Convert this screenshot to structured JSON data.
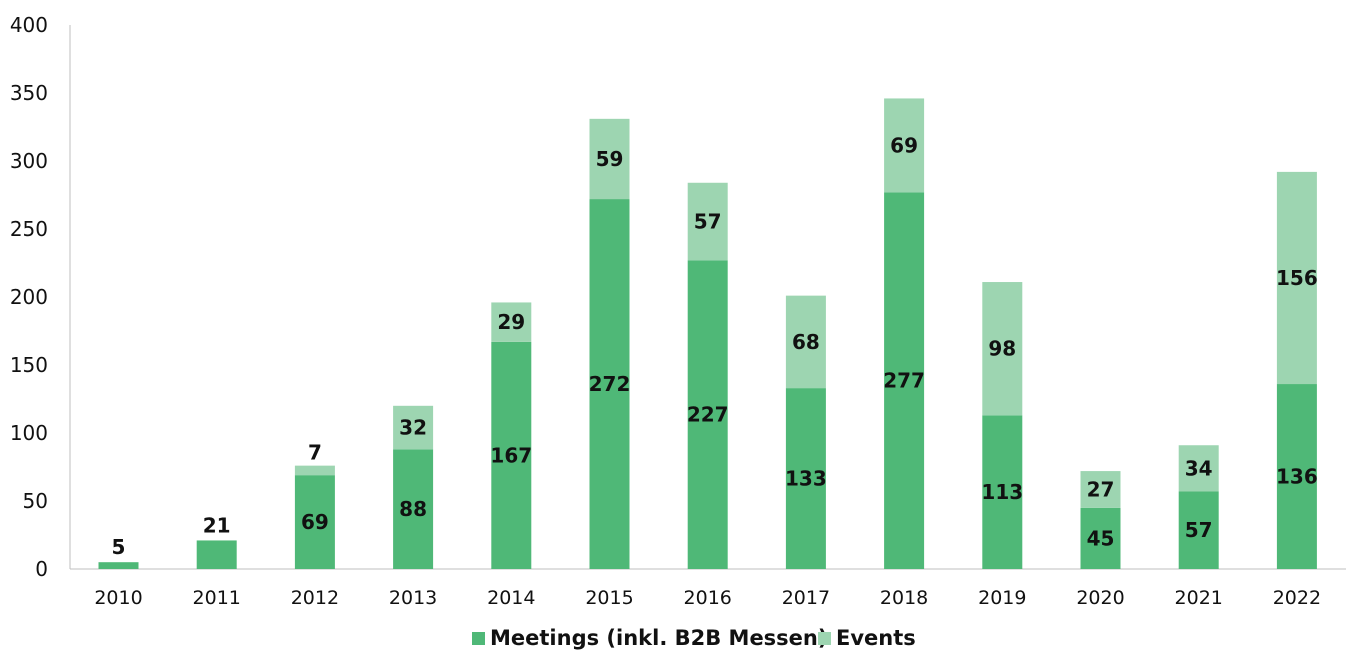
{
  "chart_data": {
    "type": "bar",
    "stacked": true,
    "categories": [
      "2010",
      "2011",
      "2012",
      "2013",
      "2014",
      "2015",
      "2016",
      "2017",
      "2018",
      "2019",
      "2020",
      "2021",
      "2022"
    ],
    "series": [
      {
        "name": "Meetings (inkl. B2B Messen)",
        "color": "#4fb877",
        "values": [
          5,
          21,
          69,
          88,
          167,
          272,
          227,
          133,
          277,
          113,
          45,
          57,
          136
        ]
      },
      {
        "name": "Events",
        "color": "#9dd5b1",
        "values": [
          0,
          0,
          7,
          32,
          29,
          59,
          57,
          68,
          69,
          98,
          27,
          34,
          156
        ]
      }
    ],
    "ylim": [
      0,
      400
    ],
    "yticks": [
      0,
      50,
      100,
      150,
      200,
      250,
      300,
      350,
      400
    ],
    "grid": false,
    "legend": "bottom-center",
    "title": "",
    "xlabel": "",
    "ylabel": ""
  }
}
